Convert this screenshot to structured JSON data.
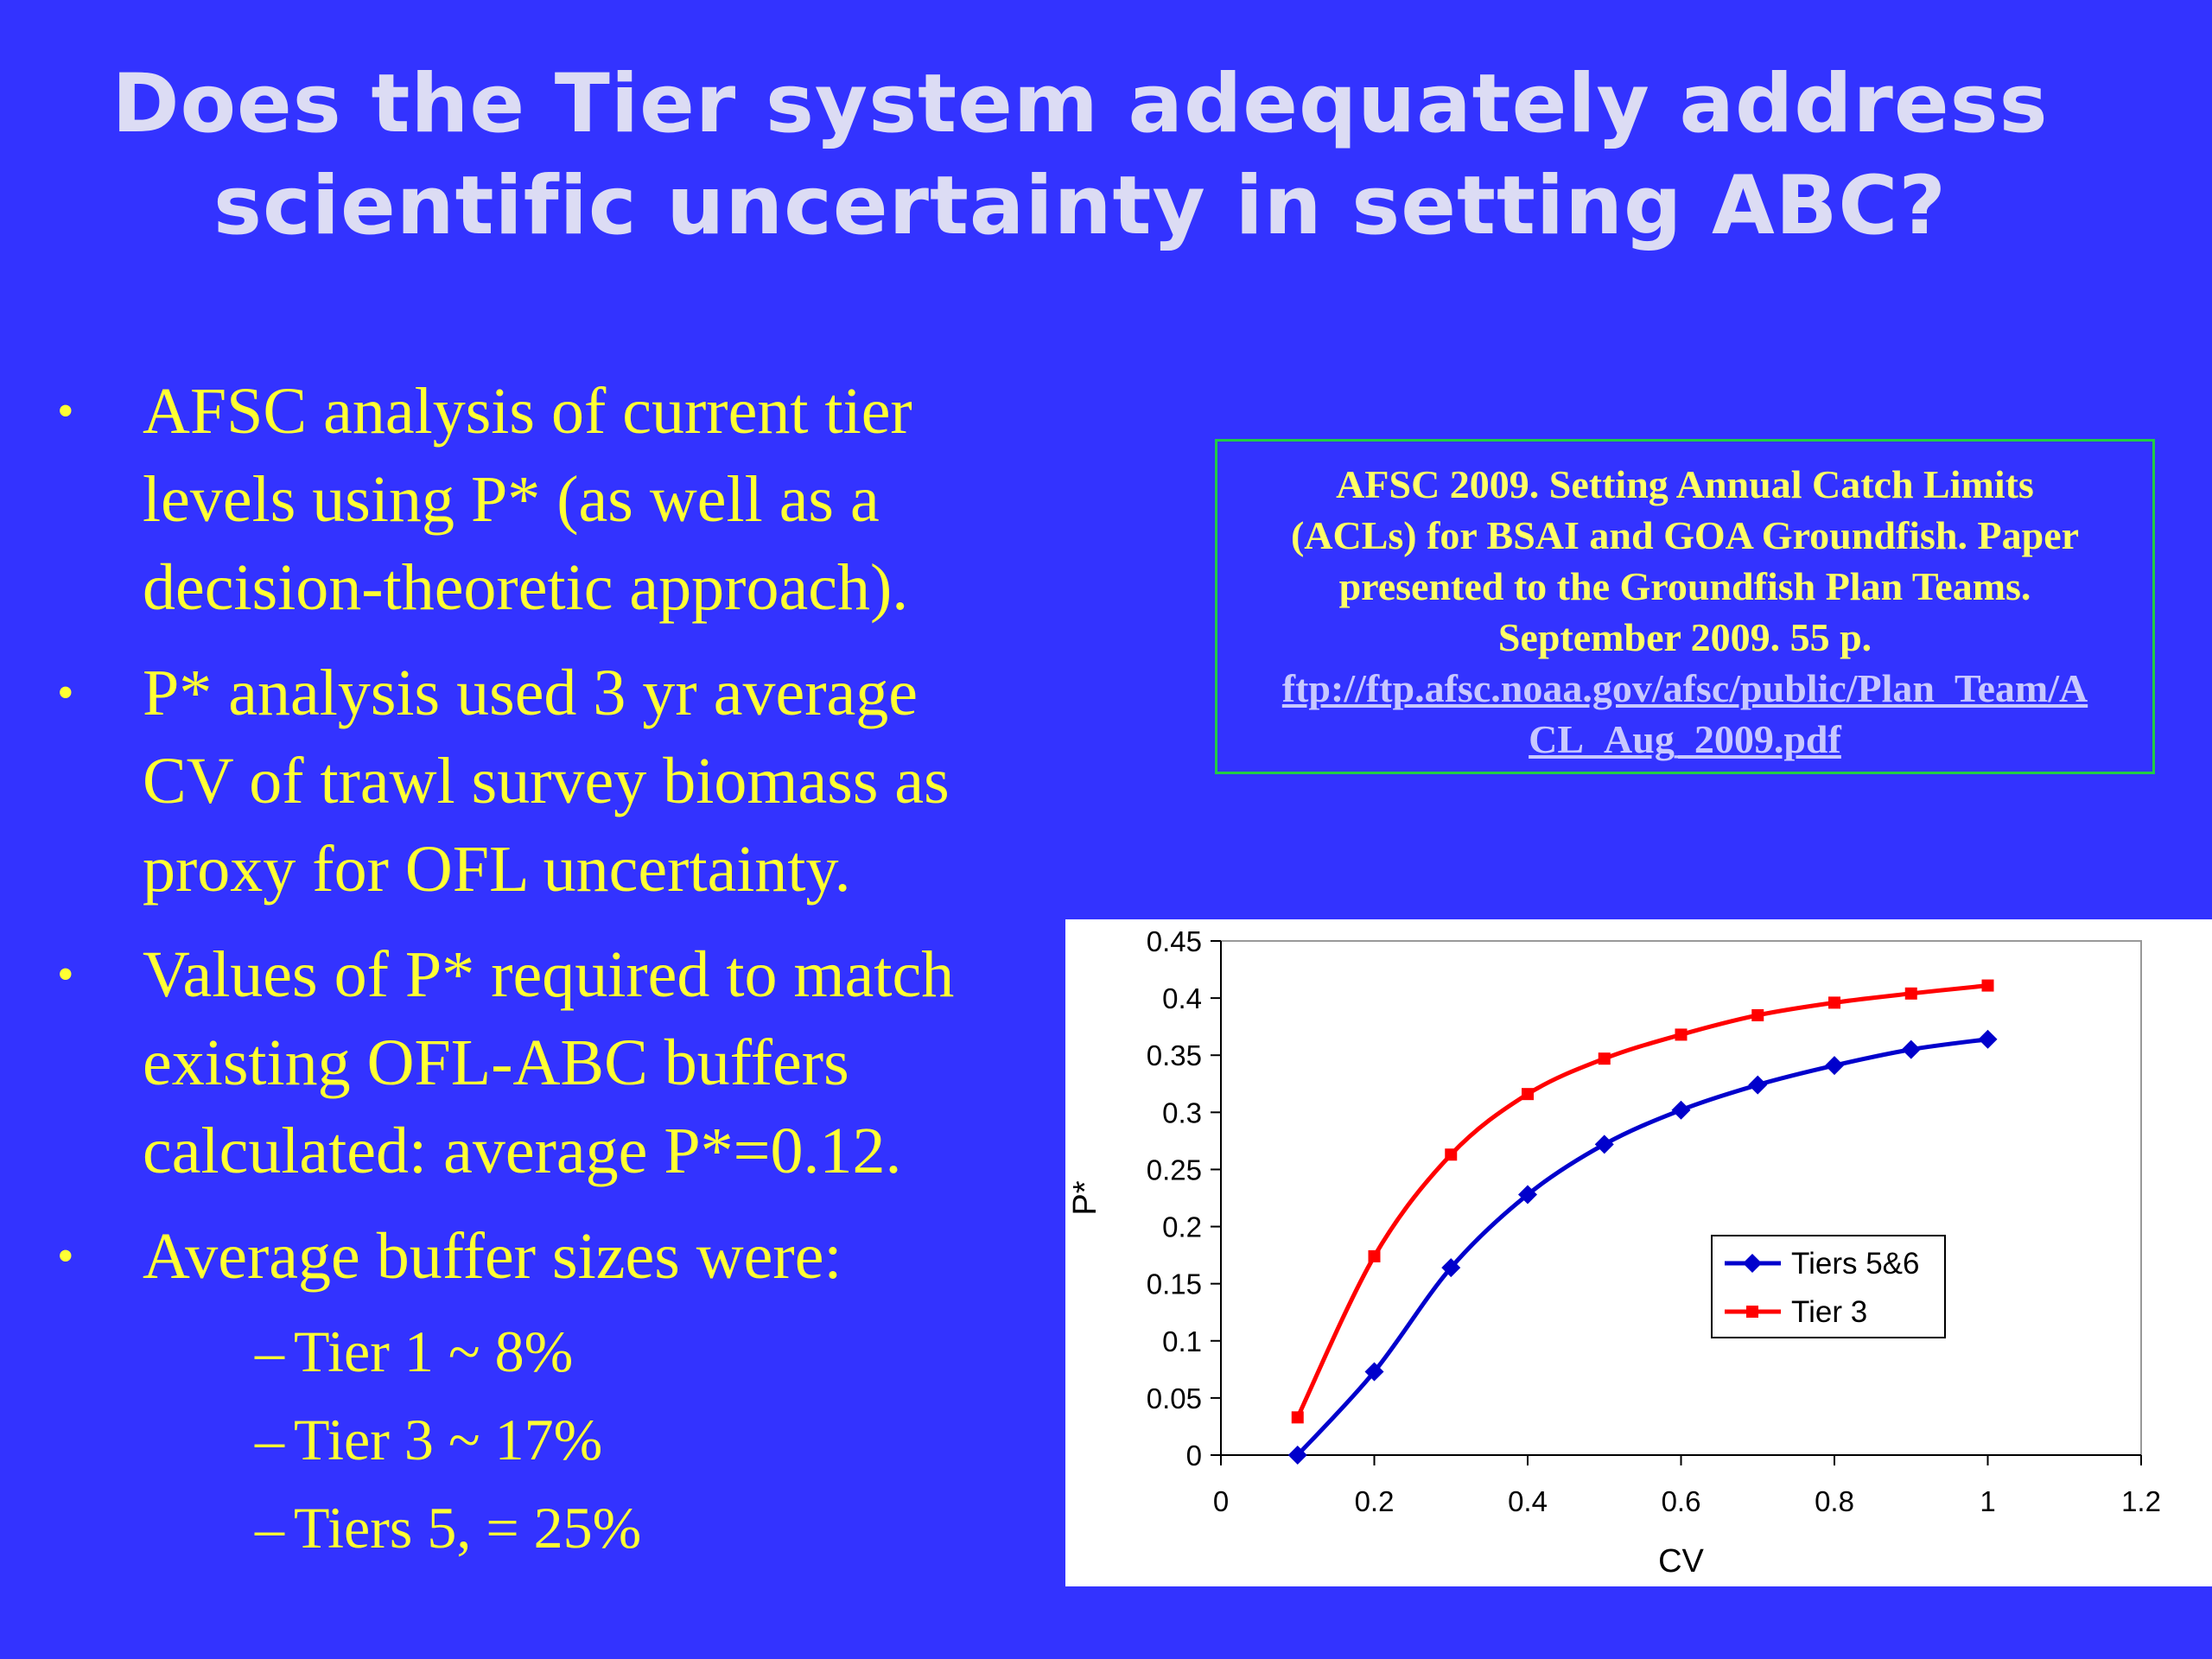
{
  "title": {
    "line1": "Does the Tier system adequately address",
    "line2": "scientific uncertainty in setting ABC?"
  },
  "bullets": [
    {
      "lines": [
        "AFSC analysis of current tier",
        "levels using P* (as well as a",
        "decision-theoretic approach)."
      ]
    },
    {
      "lines": [
        "P* analysis used 3 yr average",
        "CV of trawl survey biomass as",
        "proxy for OFL uncertainty."
      ]
    },
    {
      "lines": [
        "Values of P* required to match",
        "existing OFL-ABC buffers",
        "calculated: average P*=0.12."
      ]
    },
    {
      "lines": [
        "Average buffer sizes were:"
      ]
    }
  ],
  "bullet_glyph": "•",
  "sub_glyph": "–",
  "sub_bullets": [
    "Tier 1 ~ 8%",
    "Tier 3 ~ 17%",
    "Tiers 5, = 25%"
  ],
  "citation": {
    "lines": [
      "AFSC 2009. Setting Annual Catch Limits",
      "(ACLs) for BSAI and GOA Groundfish. Paper",
      "presented to the Groundfish Plan Teams.",
      "September 2009. 55 p."
    ],
    "link_lines": [
      "ftp://ftp.afsc.noaa.gov/afsc/public/Plan_Team/A",
      "CL_Aug_2009.pdf"
    ]
  },
  "colors": {
    "background": "#3333ff",
    "title": "#dcdcf4",
    "bullet_text": "#ffff33",
    "citation_border": "#22cc44",
    "tiers56": "#0000cc",
    "tier3": "#ff0000"
  },
  "chart_data": {
    "type": "line",
    "title": "",
    "xlabel": "CV",
    "ylabel": "P*",
    "xlim": [
      0,
      1.2
    ],
    "ylim": [
      0,
      0.45
    ],
    "xticks": [
      0,
      0.2,
      0.4,
      0.6,
      0.8,
      1,
      1.2
    ],
    "xtick_labels": [
      "0",
      "0.2",
      "0.4",
      "0.6",
      "0.8",
      "1",
      "1.2"
    ],
    "yticks": [
      0,
      0.05,
      0.1,
      0.15,
      0.2,
      0.25,
      0.3,
      0.35,
      0.4,
      0.45
    ],
    "ytick_labels": [
      "0",
      "0.05",
      "0.1",
      "0.15",
      "0.2",
      "0.25",
      "0.3",
      "0.35",
      "0.4",
      "0.45"
    ],
    "grid": false,
    "legend_position": "right",
    "x": [
      0.1,
      0.2,
      0.3,
      0.4,
      0.5,
      0.6,
      0.7,
      0.8,
      0.9,
      1.0
    ],
    "series": [
      {
        "name": "Tiers 5&6",
        "color": "#0000cc",
        "marker": "diamond",
        "values": [
          0.0,
          0.073,
          0.164,
          0.228,
          0.272,
          0.302,
          0.324,
          0.341,
          0.355,
          0.364
        ]
      },
      {
        "name": "Tier 3",
        "color": "#ff0000",
        "marker": "square",
        "values": [
          0.033,
          0.174,
          0.263,
          0.316,
          0.347,
          0.368,
          0.385,
          0.396,
          0.404,
          0.411
        ]
      }
    ]
  }
}
